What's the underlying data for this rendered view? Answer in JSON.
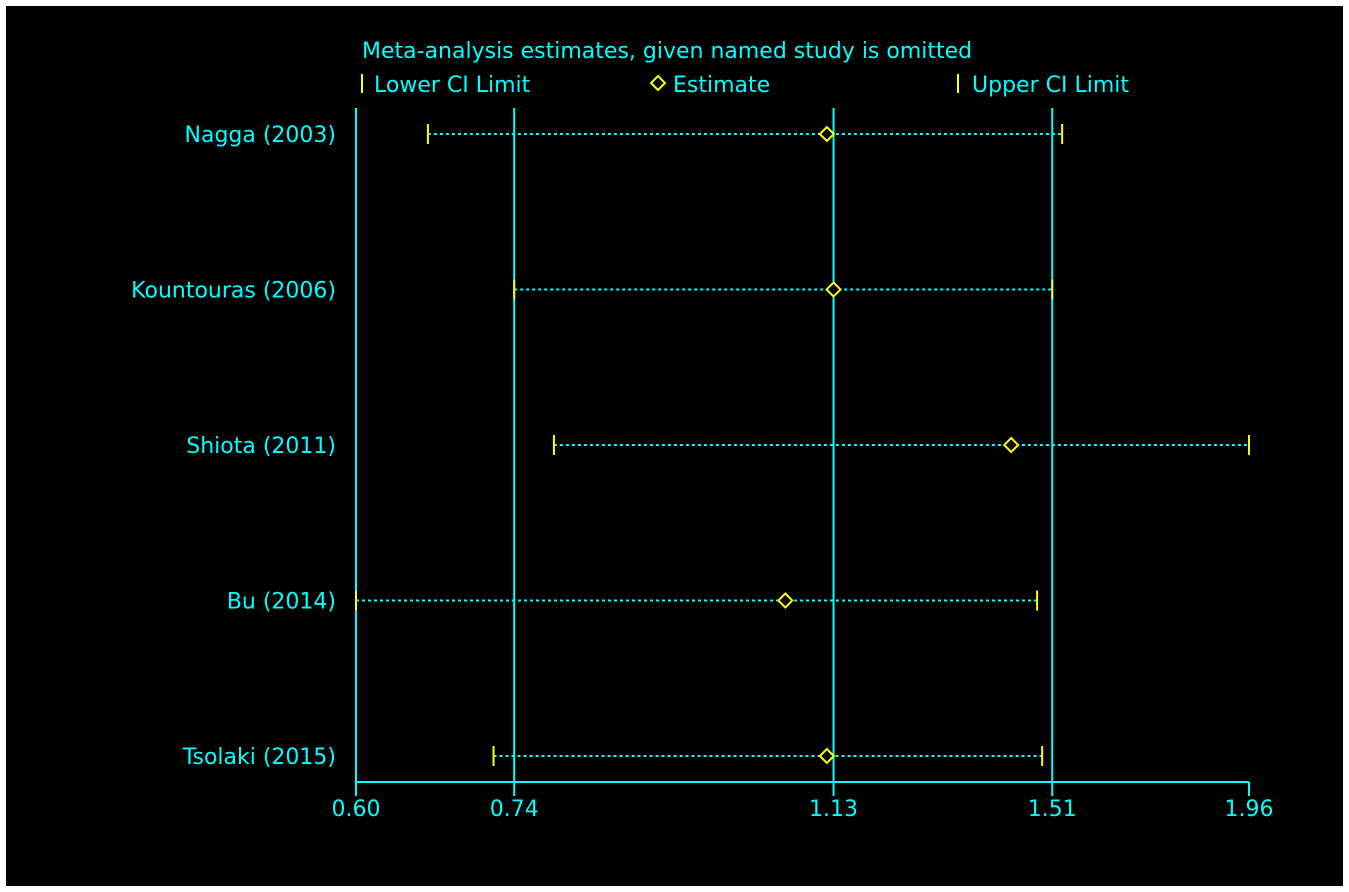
{
  "chart_data": {
    "type": "sensitivity-forest",
    "title": "Meta-analysis estimates, given named study is omitted",
    "legend": {
      "placement": "top",
      "items": [
        {
          "key": "lower",
          "label": "Lower CI Limit",
          "marker": "tick"
        },
        {
          "key": "estimate",
          "label": "Estimate",
          "marker": "diamond"
        },
        {
          "key": "upper",
          "label": "Upper CI Limit",
          "marker": "tick"
        }
      ]
    },
    "x_ticks": [
      0.6,
      0.74,
      1.13,
      1.51,
      1.96
    ],
    "x_tick_labels": [
      "0.60",
      "0.74",
      "1.13",
      "1.51",
      "1.96"
    ],
    "xlim": [
      0.6,
      1.96
    ],
    "xscale": "log",
    "reference_lines": [
      0.74,
      1.13,
      1.51
    ],
    "studies": [
      {
        "label": "Nagga (2003)",
        "lower": 0.66,
        "estimate": 1.12,
        "upper": 1.53
      },
      {
        "label": "Kountouras (2006)",
        "lower": 0.74,
        "estimate": 1.13,
        "upper": 1.51
      },
      {
        "label": "Shiota (2011)",
        "lower": 0.78,
        "estimate": 1.43,
        "upper": 1.96
      },
      {
        "label": "Bu (2014)",
        "lower": 0.6,
        "estimate": 1.06,
        "upper": 1.48
      },
      {
        "label": "Tsolaki (2015)",
        "lower": 0.72,
        "estimate": 1.12,
        "upper": 1.49
      }
    ],
    "colors": {
      "background": "#000000",
      "axis": "#00ffff",
      "text": "#00ffff",
      "ci_line": "#00ffff",
      "markers": "#ffff00"
    }
  }
}
